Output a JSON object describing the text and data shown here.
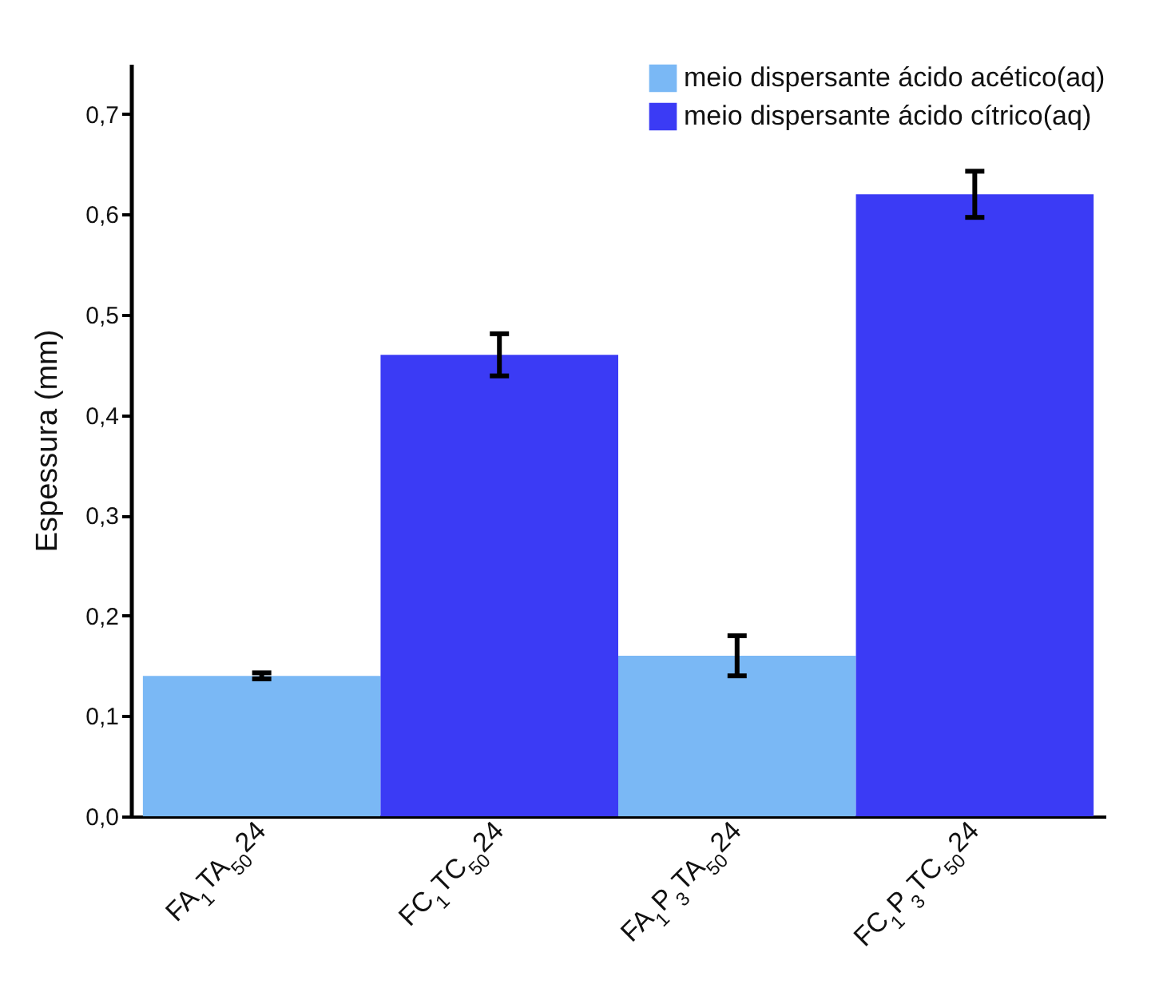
{
  "chart_data": {
    "type": "bar",
    "ylabel": "Espessura (mm)",
    "categories": [
      "FA$_{1}$TA$_{50}$24",
      "FC$_{1}$TC$_{50}$24",
      "FA$_{1}$P$_{3}$TA$_{50}$24",
      "FC$_{1}$P$_{3}$TC$_{50}$24"
    ],
    "series": [
      {
        "name": "meio dispersante ácido acético(aq)",
        "color": "#7ab8f5",
        "values": [
          0.14,
          null,
          0.16,
          null
        ],
        "errors": [
          0.003,
          null,
          0.02,
          null
        ]
      },
      {
        "name": "meio dispersante ácido cítrico(aq)",
        "color": "#3b3bf5",
        "values": [
          null,
          0.46,
          null,
          0.62
        ],
        "errors": [
          null,
          0.021,
          null,
          0.023
        ]
      }
    ],
    "ylim": [
      0,
      0.75
    ],
    "yticks": [
      {
        "value": 0,
        "label": "0,0"
      },
      {
        "value": 0.1,
        "label": "0,1"
      },
      {
        "value": 0.2,
        "label": "0,2"
      },
      {
        "value": 0.3,
        "label": "0,3"
      },
      {
        "value": 0.4,
        "label": "0,4"
      },
      {
        "value": 0.5,
        "label": "0,5"
      },
      {
        "value": 0.6,
        "label": "0,6"
      },
      {
        "value": 0.7,
        "label": "0,7"
      }
    ],
    "legend": "top right"
  }
}
